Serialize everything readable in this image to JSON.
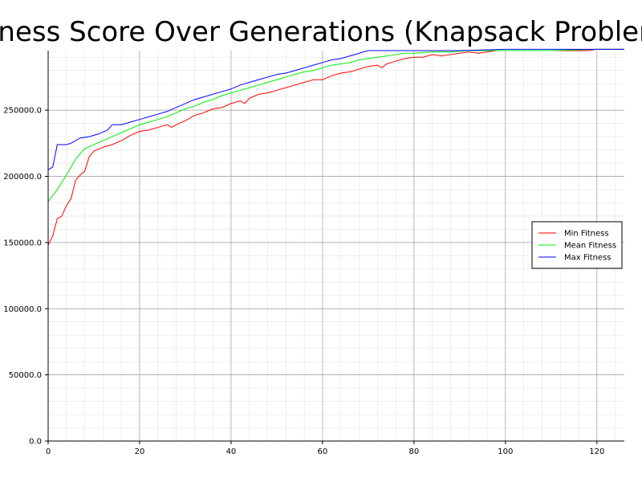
{
  "chart_data": {
    "type": "line",
    "title": "Fitness Score Over Generations (Knapsack Problem)",
    "xlabel": "",
    "ylabel": "",
    "xlim": [
      0,
      126
    ],
    "ylim": [
      0,
      295000
    ],
    "x_ticks": [
      0,
      20,
      40,
      60,
      80,
      100,
      120
    ],
    "y_ticks": [
      0,
      50000,
      100000,
      150000,
      200000,
      250000
    ],
    "x_tick_labels": [
      "0",
      "20",
      "40",
      "60",
      "80",
      "100",
      "120"
    ],
    "y_tick_labels": [
      "0.0",
      "50000.0",
      "100000.0",
      "150000.0",
      "200000.0",
      "250000.0"
    ],
    "grid": true,
    "legend_position": "right",
    "series": [
      {
        "name": "Min Fitness",
        "color": "#ff0000",
        "points": [
          [
            0,
            148000
          ],
          [
            1,
            155000
          ],
          [
            2,
            168000
          ],
          [
            3,
            170000
          ],
          [
            4,
            178000
          ],
          [
            5,
            183000
          ],
          [
            6,
            197000
          ],
          [
            7,
            201000
          ],
          [
            8,
            204000
          ],
          [
            9,
            215000
          ],
          [
            10,
            219000
          ],
          [
            12,
            222000
          ],
          [
            14,
            224000
          ],
          [
            16,
            227000
          ],
          [
            18,
            231000
          ],
          [
            20,
            234000
          ],
          [
            22,
            235000
          ],
          [
            24,
            237000
          ],
          [
            26,
            239000
          ],
          [
            27,
            237000
          ],
          [
            28,
            239000
          ],
          [
            30,
            242000
          ],
          [
            32,
            246000
          ],
          [
            34,
            248000
          ],
          [
            36,
            251000
          ],
          [
            38,
            252000
          ],
          [
            40,
            255000
          ],
          [
            42,
            257000
          ],
          [
            43,
            255000
          ],
          [
            44,
            259000
          ],
          [
            46,
            262000
          ],
          [
            48,
            263000
          ],
          [
            50,
            265000
          ],
          [
            52,
            267000
          ],
          [
            54,
            269000
          ],
          [
            56,
            271000
          ],
          [
            58,
            273000
          ],
          [
            60,
            273000
          ],
          [
            62,
            276000
          ],
          [
            64,
            278000
          ],
          [
            66,
            279000
          ],
          [
            68,
            281000
          ],
          [
            70,
            283000
          ],
          [
            72,
            284000
          ],
          [
            73,
            282000
          ],
          [
            74,
            285000
          ],
          [
            76,
            287000
          ],
          [
            78,
            289000
          ],
          [
            80,
            290000
          ],
          [
            82,
            290000
          ],
          [
            84,
            292000
          ],
          [
            86,
            291000
          ],
          [
            88,
            292000
          ],
          [
            90,
            293000
          ],
          [
            92,
            294000
          ],
          [
            94,
            293000
          ],
          [
            96,
            294000
          ],
          [
            98,
            295000
          ],
          [
            100,
            295000
          ],
          [
            104,
            295000
          ],
          [
            110,
            295000
          ],
          [
            118,
            295000
          ],
          [
            120,
            296000
          ],
          [
            126,
            296000
          ]
        ]
      },
      {
        "name": "Mean Fitness",
        "color": "#00ee00",
        "points": [
          [
            0,
            181000
          ],
          [
            2,
            190000
          ],
          [
            4,
            201000
          ],
          [
            6,
            213000
          ],
          [
            8,
            221000
          ],
          [
            10,
            224000
          ],
          [
            12,
            227000
          ],
          [
            14,
            230000
          ],
          [
            16,
            233000
          ],
          [
            18,
            236000
          ],
          [
            20,
            239000
          ],
          [
            22,
            241000
          ],
          [
            24,
            243000
          ],
          [
            26,
            245000
          ],
          [
            28,
            248000
          ],
          [
            30,
            251000
          ],
          [
            32,
            253000
          ],
          [
            34,
            256000
          ],
          [
            36,
            258000
          ],
          [
            38,
            261000
          ],
          [
            40,
            263000
          ],
          [
            42,
            265000
          ],
          [
            44,
            267000
          ],
          [
            46,
            269000
          ],
          [
            48,
            271000
          ],
          [
            50,
            273000
          ],
          [
            52,
            275000
          ],
          [
            54,
            277000
          ],
          [
            56,
            279000
          ],
          [
            58,
            280000
          ],
          [
            60,
            282000
          ],
          [
            62,
            284000
          ],
          [
            64,
            285000
          ],
          [
            66,
            286000
          ],
          [
            68,
            288000
          ],
          [
            70,
            289000
          ],
          [
            72,
            290000
          ],
          [
            74,
            291000
          ],
          [
            76,
            292000
          ],
          [
            78,
            293000
          ],
          [
            80,
            293000
          ],
          [
            84,
            294000
          ],
          [
            88,
            294000
          ],
          [
            92,
            295000
          ],
          [
            96,
            295000
          ],
          [
            100,
            295000
          ],
          [
            110,
            295000
          ],
          [
            120,
            296000
          ],
          [
            126,
            296000
          ]
        ]
      },
      {
        "name": "Max Fitness",
        "color": "#0000ff",
        "points": [
          [
            0,
            205000
          ],
          [
            1,
            207000
          ],
          [
            2,
            224000
          ],
          [
            4,
            224000
          ],
          [
            5,
            225000
          ],
          [
            7,
            229000
          ],
          [
            9,
            230000
          ],
          [
            11,
            232000
          ],
          [
            13,
            235000
          ],
          [
            14,
            239000
          ],
          [
            16,
            239000
          ],
          [
            18,
            241000
          ],
          [
            20,
            243000
          ],
          [
            22,
            245000
          ],
          [
            24,
            247000
          ],
          [
            26,
            249000
          ],
          [
            28,
            252000
          ],
          [
            30,
            255000
          ],
          [
            32,
            258000
          ],
          [
            34,
            260000
          ],
          [
            36,
            262000
          ],
          [
            38,
            264000
          ],
          [
            40,
            266000
          ],
          [
            42,
            269000
          ],
          [
            44,
            271000
          ],
          [
            46,
            273000
          ],
          [
            48,
            275000
          ],
          [
            50,
            277000
          ],
          [
            52,
            278000
          ],
          [
            54,
            280000
          ],
          [
            56,
            282000
          ],
          [
            58,
            284000
          ],
          [
            60,
            286000
          ],
          [
            62,
            288000
          ],
          [
            64,
            289000
          ],
          [
            66,
            291000
          ],
          [
            68,
            293000
          ],
          [
            70,
            295000
          ],
          [
            74,
            295000
          ],
          [
            80,
            295000
          ],
          [
            90,
            295000
          ],
          [
            100,
            296000
          ],
          [
            110,
            296000
          ],
          [
            120,
            296000
          ],
          [
            125,
            296000
          ],
          [
            126,
            296000
          ]
        ]
      }
    ]
  }
}
